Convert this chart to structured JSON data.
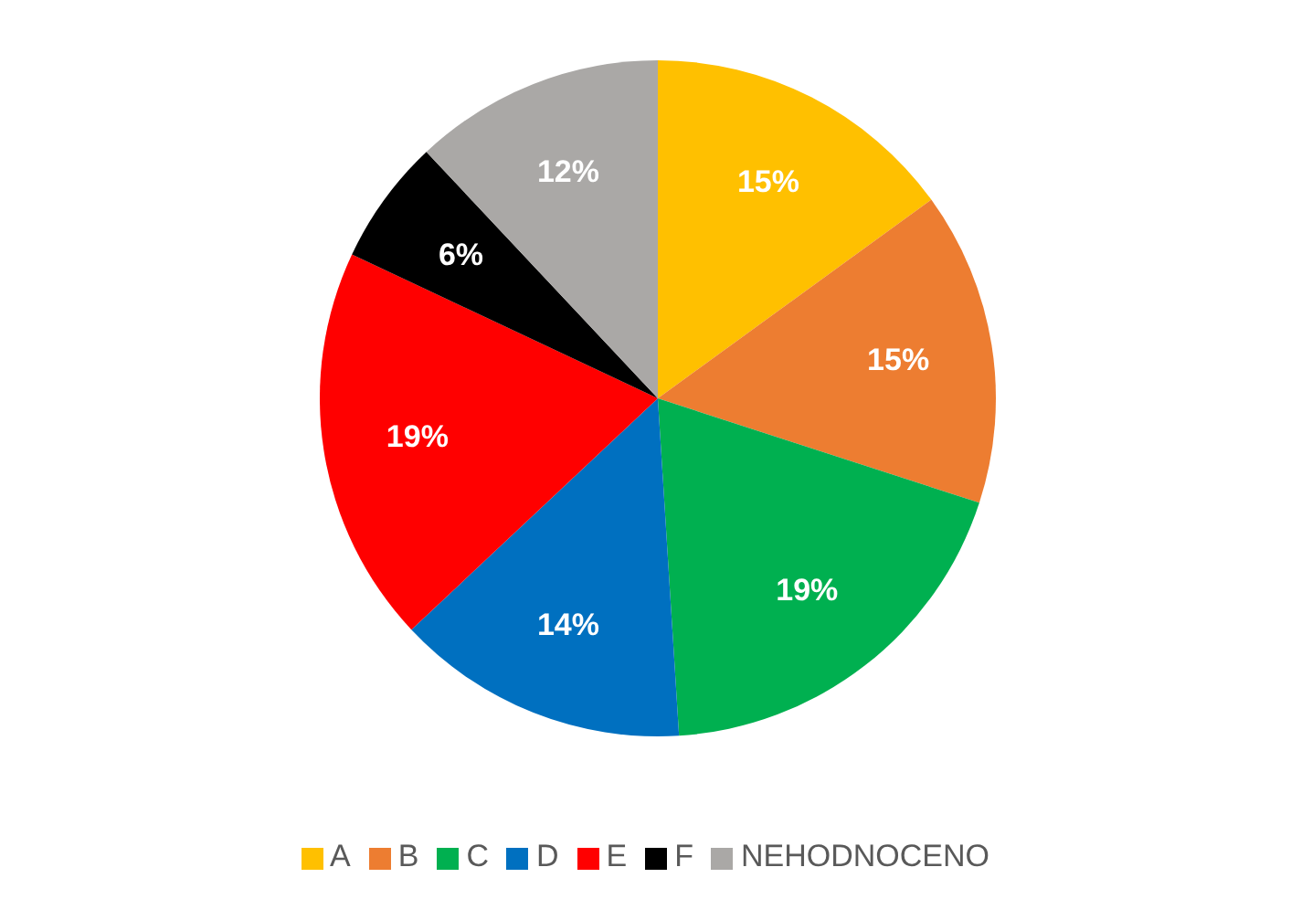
{
  "chart_data": {
    "type": "pie",
    "categories": [
      "A",
      "B",
      "C",
      "D",
      "E",
      "F",
      "NEHODNOCENO"
    ],
    "values": [
      15,
      15,
      19,
      14,
      19,
      6,
      12
    ],
    "value_labels": [
      "15%",
      "15%",
      "19%",
      "14%",
      "19%",
      "6%",
      "12%"
    ],
    "colors": [
      "#ffc000",
      "#ed7d31",
      "#00b050",
      "#0070c0",
      "#ff0000",
      "#000000",
      "#aaa8a6"
    ],
    "legend": "bottom"
  }
}
